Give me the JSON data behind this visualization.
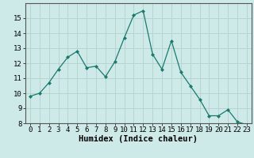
{
  "x": [
    0,
    1,
    2,
    3,
    4,
    5,
    6,
    7,
    8,
    9,
    10,
    11,
    12,
    13,
    14,
    15,
    16,
    17,
    18,
    19,
    20,
    21,
    22,
    23
  ],
  "y": [
    9.8,
    10.0,
    10.7,
    11.6,
    12.4,
    12.8,
    11.7,
    11.8,
    11.1,
    12.1,
    13.7,
    15.2,
    15.5,
    12.6,
    11.6,
    13.5,
    11.4,
    10.5,
    9.6,
    8.5,
    8.5,
    8.9,
    8.1,
    7.9
  ],
  "xlabel": "Humidex (Indice chaleur)",
  "ylim": [
    8,
    16
  ],
  "yticks": [
    8,
    9,
    10,
    11,
    12,
    13,
    14,
    15
  ],
  "line_color": "#1a7a6e",
  "marker_color": "#1a7a6e",
  "bg_color": "#ceeae8",
  "grid_color": "#b8d4d0",
  "xlabel_fontsize": 7.5,
  "tick_fontsize": 6.5
}
